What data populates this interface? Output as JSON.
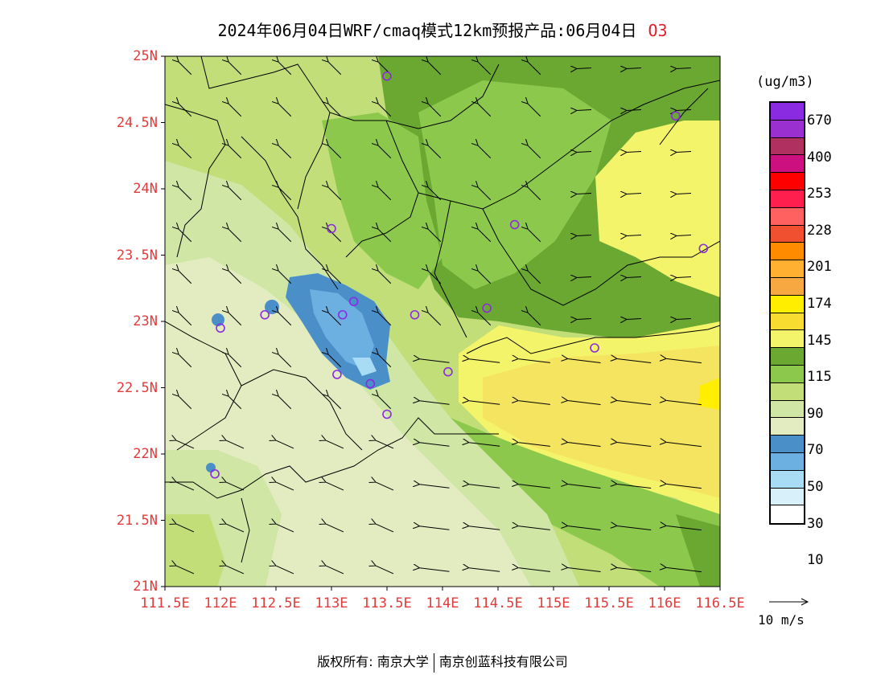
{
  "title": {
    "text": "2024年06月04日WRF/cmaq模式12km预报产品:06月04日",
    "pollutant": "O3"
  },
  "axes": {
    "lat_labels": [
      "25N",
      "24.5N",
      "24N",
      "23.5N",
      "23N",
      "22.5N",
      "22N",
      "21.5N",
      "21N"
    ],
    "lat_values": [
      25,
      24.5,
      24,
      23.5,
      23,
      22.5,
      22,
      21.5,
      21
    ],
    "lon_labels": [
      "111.5E",
      "112E",
      "112.5E",
      "113E",
      "113.5E",
      "114E",
      "114.5E",
      "115E",
      "115.5E",
      "116E",
      "116.5E"
    ],
    "lon_values": [
      111.5,
      112,
      112.5,
      113,
      113.5,
      114,
      114.5,
      115,
      115.5,
      116,
      116.5
    ],
    "lat_range": [
      21,
      25
    ],
    "lon_range": [
      111.5,
      116.5
    ]
  },
  "legend": {
    "unit": "(ug/m3)",
    "labels": [
      "670",
      "400",
      "253",
      "228",
      "201",
      "174",
      "145",
      "115",
      "90",
      "70",
      "50",
      "30",
      "10"
    ],
    "colors": [
      "#8a2be2",
      "#9b30d0",
      "#b03060",
      "#cd1080",
      "#ff0000",
      "#ff1f4f",
      "#ff6060",
      "#f05030",
      "#ff8c00",
      "#ffb030",
      "#f8a840",
      "#ffee00",
      "#f8dd30",
      "#f4f46a",
      "#6aa832",
      "#8cc84c",
      "#c2de78",
      "#cfe6a4",
      "#e2ecc0",
      "#4a8fc8",
      "#6bb0e0",
      "#a8dcf4",
      "#d8f0fa",
      "#ffffff"
    ]
  },
  "wind_reference": {
    "label": "10 m/s"
  },
  "copyright": {
    "left": "版权所有: 南京大学",
    "right": "南京创蓝科技有限公司"
  },
  "colors": {
    "axis_label": "#e23b3b",
    "pollutant_label": "#e0202a",
    "station_marker": "#8a2be2"
  },
  "stations": [
    {
      "lon": 113.5,
      "lat": 24.85
    },
    {
      "lon": 116.1,
      "lat": 24.55
    },
    {
      "lon": 113.0,
      "lat": 23.7
    },
    {
      "lon": 114.65,
      "lat": 23.73
    },
    {
      "lon": 116.35,
      "lat": 23.55
    },
    {
      "lon": 113.2,
      "lat": 23.15
    },
    {
      "lon": 113.1,
      "lat": 23.05
    },
    {
      "lon": 112.4,
      "lat": 23.05
    },
    {
      "lon": 113.75,
      "lat": 23.05
    },
    {
      "lon": 114.4,
      "lat": 23.1
    },
    {
      "lon": 112.0,
      "lat": 22.95
    },
    {
      "lon": 115.37,
      "lat": 22.8
    },
    {
      "lon": 113.05,
      "lat": 22.6
    },
    {
      "lon": 113.35,
      "lat": 22.53
    },
    {
      "lon": 114.05,
      "lat": 22.62
    },
    {
      "lon": 113.5,
      "lat": 22.3
    },
    {
      "lon": 111.95,
      "lat": 21.85
    }
  ]
}
